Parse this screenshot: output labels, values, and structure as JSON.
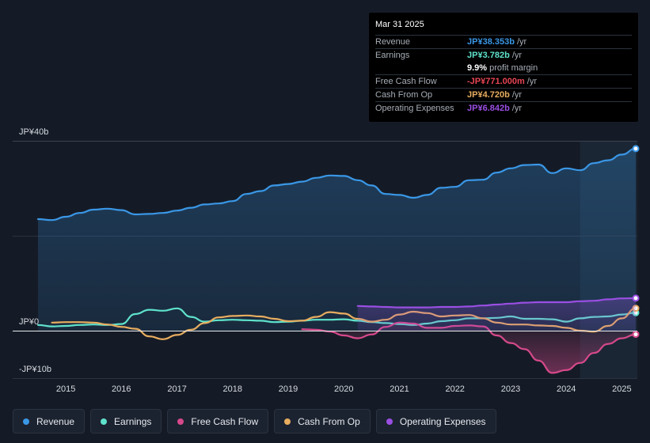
{
  "chart_data": {
    "type": "line",
    "currency": "JP¥",
    "x_start": 2014.5,
    "x_end": 2025.25,
    "ylim": [
      -10,
      40
    ],
    "y_tick_labels": [
      {
        "value": 40,
        "label": "JP¥40b"
      },
      {
        "value": 0,
        "label": "JP¥0"
      },
      {
        "value": -10,
        "label": "-JP¥10b"
      }
    ],
    "x_tick_labels": [
      "2015",
      "2016",
      "2017",
      "2018",
      "2019",
      "2020",
      "2021",
      "2022",
      "2023",
      "2024",
      "2025"
    ],
    "x_tick_values": [
      2015,
      2016,
      2017,
      2018,
      2019,
      2020,
      2021,
      2022,
      2023,
      2024,
      2025
    ],
    "highlight_from": 2024.25,
    "series": [
      {
        "name": "Revenue",
        "key": "revenue",
        "color": "#3a97e6",
        "fill": true,
        "x": [
          2014.5,
          2014.75,
          2015.0,
          2015.25,
          2015.5,
          2015.75,
          2016.0,
          2016.25,
          2016.5,
          2016.75,
          2017.0,
          2017.25,
          2017.5,
          2017.75,
          2018.0,
          2018.25,
          2018.5,
          2018.75,
          2019.0,
          2019.25,
          2019.5,
          2019.75,
          2020.0,
          2020.25,
          2020.5,
          2020.75,
          2021.0,
          2021.25,
          2021.5,
          2021.75,
          2022.0,
          2022.25,
          2022.5,
          2022.75,
          2023.0,
          2023.25,
          2023.5,
          2023.75,
          2024.0,
          2024.25,
          2024.5,
          2024.75,
          2025.0,
          2025.25
        ],
        "values": [
          23.5,
          23.3,
          24.0,
          24.8,
          25.5,
          25.7,
          25.4,
          24.5,
          24.6,
          24.8,
          25.3,
          25.9,
          26.6,
          26.8,
          27.3,
          28.8,
          29.4,
          30.6,
          30.9,
          31.4,
          32.2,
          32.7,
          32.6,
          31.7,
          30.6,
          28.8,
          28.6,
          28.0,
          28.6,
          30.1,
          30.3,
          31.7,
          31.8,
          33.3,
          34.2,
          34.9,
          35.0,
          33.2,
          34.2,
          33.8,
          35.3,
          35.9,
          37.1,
          38.353
        ]
      },
      {
        "name": "Earnings",
        "key": "earnings",
        "color": "#5fe2cb",
        "fill": false,
        "x": [
          2014.5,
          2014.75,
          2015.0,
          2015.25,
          2015.5,
          2015.75,
          2016.0,
          2016.25,
          2016.5,
          2016.75,
          2017.0,
          2017.25,
          2017.5,
          2017.75,
          2018.0,
          2018.25,
          2018.5,
          2018.75,
          2019.0,
          2019.25,
          2019.5,
          2019.75,
          2020.0,
          2020.25,
          2020.5,
          2020.75,
          2021.0,
          2021.25,
          2021.5,
          2021.75,
          2022.0,
          2022.25,
          2022.5,
          2022.75,
          2023.0,
          2023.25,
          2023.5,
          2023.75,
          2024.0,
          2024.25,
          2024.5,
          2024.75,
          2025.0,
          2025.25
        ],
        "values": [
          1.2,
          0.9,
          1.0,
          1.2,
          1.3,
          1.2,
          1.4,
          3.5,
          4.4,
          4.2,
          4.7,
          2.9,
          1.9,
          2.2,
          2.3,
          2.2,
          2.1,
          1.8,
          1.9,
          2.1,
          2.3,
          2.3,
          2.4,
          2.1,
          1.8,
          1.6,
          1.4,
          1.2,
          1.5,
          2.0,
          2.2,
          2.6,
          2.6,
          2.7,
          3.0,
          2.5,
          2.5,
          2.4,
          1.9,
          2.6,
          2.9,
          3.0,
          3.4,
          3.782
        ]
      },
      {
        "name": "Free Cash Flow",
        "key": "fcf",
        "color": "#d6498b",
        "fill": true,
        "x": [
          2019.25,
          2019.5,
          2019.75,
          2020.0,
          2020.25,
          2020.5,
          2020.75,
          2021.0,
          2021.25,
          2021.5,
          2021.75,
          2022.0,
          2022.25,
          2022.5,
          2022.75,
          2023.0,
          2023.25,
          2023.5,
          2023.75,
          2024.0,
          2024.25,
          2024.5,
          2024.75,
          2025.0,
          2025.25
        ],
        "values": [
          0.3,
          0.2,
          -0.2,
          -1.0,
          -1.6,
          -0.8,
          0.8,
          1.7,
          1.5,
          0.6,
          0.6,
          1.0,
          1.1,
          0.9,
          -1.0,
          -2.6,
          -3.9,
          -6.3,
          -8.9,
          -8.3,
          -6.8,
          -4.7,
          -2.8,
          -1.6,
          -0.771
        ]
      },
      {
        "name": "Cash From Op",
        "key": "cfo",
        "color": "#e8ad5f",
        "fill": false,
        "x": [
          2014.75,
          2015.0,
          2015.25,
          2015.5,
          2015.75,
          2016.0,
          2016.25,
          2016.5,
          2016.75,
          2017.0,
          2017.25,
          2017.5,
          2017.75,
          2018.0,
          2018.25,
          2018.5,
          2018.75,
          2019.0,
          2019.25,
          2019.5,
          2019.75,
          2020.0,
          2020.25,
          2020.5,
          2020.75,
          2021.0,
          2021.25,
          2021.5,
          2021.75,
          2022.0,
          2022.25,
          2022.5,
          2022.75,
          2023.0,
          2023.25,
          2023.5,
          2023.75,
          2024.0,
          2024.25,
          2024.5,
          2024.75,
          2025.0,
          2025.25
        ],
        "values": [
          1.7,
          1.8,
          1.8,
          1.7,
          1.3,
          0.8,
          0.4,
          -1.2,
          -1.8,
          -0.9,
          0.2,
          1.6,
          2.8,
          3.1,
          3.2,
          3.0,
          2.5,
          2.0,
          2.1,
          2.9,
          3.9,
          3.6,
          2.5,
          1.9,
          2.3,
          3.4,
          4.0,
          3.7,
          3.0,
          3.2,
          3.3,
          2.6,
          1.7,
          1.3,
          1.3,
          1.1,
          1.0,
          0.6,
          0.0,
          -0.2,
          1.0,
          2.6,
          4.72
        ]
      },
      {
        "name": "Operating Expenses",
        "key": "opex",
        "color": "#9a4fe3",
        "fill": true,
        "x": [
          2020.25,
          2020.5,
          2020.75,
          2021.0,
          2021.25,
          2021.5,
          2021.75,
          2022.0,
          2022.25,
          2022.5,
          2022.75,
          2023.0,
          2023.25,
          2023.5,
          2023.75,
          2024.0,
          2024.25,
          2024.5,
          2024.75,
          2025.0,
          2025.25
        ],
        "values": [
          5.2,
          5.1,
          5.0,
          4.9,
          4.9,
          4.9,
          5.0,
          5.0,
          5.1,
          5.3,
          5.5,
          5.7,
          5.9,
          6.0,
          6.0,
          6.0,
          6.2,
          6.3,
          6.6,
          6.8,
          6.842
        ]
      }
    ]
  },
  "tooltip": {
    "date": "Mar 31 2025",
    "rows": [
      {
        "label": "Revenue",
        "value": "JP¥38.353b",
        "unit": "/yr",
        "color": "#3a97e6"
      },
      {
        "label": "Earnings",
        "value": "JP¥3.782b",
        "unit": "/yr",
        "color": "#5fe2cb"
      },
      {
        "label": "",
        "value": "9.9%",
        "unit": "profit margin",
        "color": "#ffffff"
      },
      {
        "label": "Free Cash Flow",
        "value": "-JP¥771.000m",
        "unit": "/yr",
        "color": "#e64553"
      },
      {
        "label": "Cash From Op",
        "value": "JP¥4.720b",
        "unit": "/yr",
        "color": "#e8ad5f"
      },
      {
        "label": "Operating Expenses",
        "value": "JP¥6.842b",
        "unit": "/yr",
        "color": "#9a4fe3"
      }
    ]
  },
  "legend": [
    {
      "label": "Revenue",
      "color": "#3a97e6"
    },
    {
      "label": "Earnings",
      "color": "#5fe2cb"
    },
    {
      "label": "Free Cash Flow",
      "color": "#d6498b"
    },
    {
      "label": "Cash From Op",
      "color": "#e8ad5f"
    },
    {
      "label": "Operating Expenses",
      "color": "#9a4fe3"
    }
  ]
}
